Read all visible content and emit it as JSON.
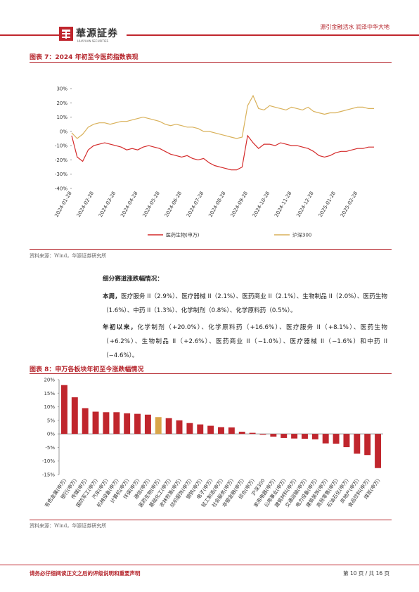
{
  "header": {
    "logo": "華源証券",
    "logo_sub": "HUAYUAN SECURITIES",
    "slogan": "源引金融活水  润泽中华大地"
  },
  "body": {
    "heading": "细分赛道涨跌幅情况：",
    "paragraphs": [
      {
        "lead": "本周，",
        "text": "医疗服务 II（2.9%）、医疗器械 II（2.1%）、医药商业 II（2.1%）、生物制品 II（2.0%）、医药生物（1.6%）、中药 II（1.3%）、化学制剂（0.8%）、化学原料药（0.5%）。"
      },
      {
        "lead": "年初以来，",
        "text": "化学制剂（+20.0%）、化学原料药（+16.6%）、医疗服务 II（+8.1%）、医药生物（+6.2%）、生物制品 II（+2.6%）、医药商业 II（−1.0%）、医疗器械 II（−1.6%）和中药 II（−4.6%）。"
      }
    ]
  },
  "chart_data": [
    {
      "type": "line",
      "title": "图表 7：2024 年初至今医药指数表现",
      "source": "资料来源：Wind，华源证券研究所",
      "categories": [
        "2024-01-28",
        null,
        null,
        null,
        "2024-02-28",
        null,
        null,
        null,
        "2024-03-28",
        null,
        null,
        null,
        "2024-04-28",
        null,
        null,
        null,
        "2024-05-28",
        null,
        null,
        null,
        "2024-06-28",
        null,
        null,
        null,
        "2024-07-28",
        null,
        null,
        null,
        "2024-08-28",
        null,
        null,
        null,
        "2024-09-28",
        null,
        null,
        null,
        "2024-10-28",
        null,
        null,
        null,
        "2024-11-28",
        null,
        null,
        null,
        "2024-12-28",
        null,
        null,
        null,
        "2025-01-28",
        null,
        null,
        null,
        "2025-02-28",
        null,
        null,
        null
      ],
      "series": [
        {
          "name": "医药生物(申万)",
          "color": "#d42a2a",
          "values": [
            -3,
            -18,
            -21,
            -13,
            -10,
            -9,
            -8,
            -9,
            -10,
            -11,
            -13,
            -12,
            -13,
            -11,
            -10,
            -11,
            -12,
            -14,
            -16,
            -17,
            -18,
            -17,
            -19,
            -20,
            -19,
            -22,
            -24,
            -25,
            -26,
            -27,
            -27,
            -25,
            -3,
            -8,
            -12,
            -9,
            -9,
            -10,
            -8,
            -9,
            -10,
            -10,
            -11,
            -12,
            -14,
            -17,
            -18,
            -17,
            -15,
            -14,
            -14,
            -13,
            -12,
            -12,
            -11,
            -11
          ]
        },
        {
          "name": "沪深300",
          "color": "#d9b15a",
          "values": [
            -1,
            -5,
            -2,
            3,
            5,
            6,
            6,
            5,
            6,
            7,
            7,
            8,
            9,
            10,
            9,
            8,
            7,
            5,
            4,
            5,
            4,
            3,
            3,
            2,
            0,
            0,
            -1,
            -2,
            -3,
            -4,
            -5,
            -4,
            18,
            25,
            16,
            15,
            18,
            17,
            16,
            15,
            17,
            16,
            15,
            17,
            14,
            13,
            12,
            13,
            13,
            14,
            15,
            16,
            17,
            17,
            16,
            16
          ]
        }
      ],
      "ylim": [
        -40,
        30
      ],
      "yticks": [
        {
          "value": -40,
          "label": "-40%"
        },
        {
          "value": -30,
          "label": "-30%"
        },
        {
          "value": -20,
          "label": "-20%"
        },
        {
          "value": -10,
          "label": "-10%"
        },
        {
          "value": 0,
          "label": "0%"
        },
        {
          "value": 10,
          "label": "10%"
        },
        {
          "value": 20,
          "label": "20%"
        },
        {
          "value": 30,
          "label": "30%"
        }
      ],
      "grid": false
    },
    {
      "type": "bar",
      "title": "图表 8：申万各板块年初至今涨跌幅情况",
      "source": "资料来源：Wind，华源证券研究所",
      "categories": [
        "有色金属(申万)",
        "银行(申万)",
        "传媒(申万)",
        "国防军工(申万)",
        "汽车(申万)",
        "机械设备(申万)",
        "计算机(申万)",
        "环保(申万)",
        "通信(申万)",
        "医药生物(申万)",
        "基础化工(申万)",
        "农林牧渔(申万)",
        "纺织服饰(申万)",
        "钢铁(申万)",
        "电子(申万)",
        "轻工制造(申万)",
        "社会服务(申万)",
        "非银金融(申万)",
        "综合(申万)",
        "沪深300",
        "家用电器(申万)",
        "公用事业(申万)",
        "建筑材料(申万)",
        "交通运输(申万)",
        "电力设备(申万)",
        "建筑装饰(申万)",
        "商贸零售(申万)",
        "石油石化(申万)",
        "房地产(申万)",
        "食品饮料(申万)",
        "煤炭(申万)"
      ],
      "values": [
        18,
        13.5,
        9.5,
        8.2,
        8,
        8,
        7.6,
        7.4,
        7.1,
        6.2,
        5.8,
        5,
        4,
        3.5,
        3,
        2.5,
        2.4,
        0.8,
        0.4,
        -0.3,
        -1,
        -1.5,
        -1.7,
        -1.8,
        -2,
        -3.5,
        -3.6,
        -4.9,
        -7.3,
        -7.8,
        -12.6
      ],
      "colors": [
        "#c0262d",
        "#c0262d",
        "#c0262d",
        "#c0262d",
        "#c0262d",
        "#c0262d",
        "#c0262d",
        "#c0262d",
        "#c0262d",
        "#d9a64a",
        "#c0262d",
        "#c0262d",
        "#c0262d",
        "#c0262d",
        "#c0262d",
        "#c0262d",
        "#c0262d",
        "#c0262d",
        "#c0262d",
        "#c0262d",
        "#c0262d",
        "#c0262d",
        "#c0262d",
        "#c0262d",
        "#c0262d",
        "#c0262d",
        "#c0262d",
        "#c0262d",
        "#c0262d",
        "#c0262d",
        "#c0262d"
      ],
      "ylim": [
        -15,
        20
      ],
      "yticks": [
        {
          "value": -15,
          "label": "-15%"
        },
        {
          "value": -10,
          "label": "-10%"
        },
        {
          "value": -5,
          "label": "-5%"
        },
        {
          "value": 0,
          "label": "0%"
        },
        {
          "value": 5,
          "label": "5%"
        },
        {
          "value": 10,
          "label": "10%"
        },
        {
          "value": 15,
          "label": "15%"
        },
        {
          "value": 20,
          "label": "20%"
        }
      ],
      "grid": false
    }
  ],
  "footer": {
    "disclaimer": "请务必仔细阅读正文之后的评级说明和重要声明",
    "page": "第 10 页 / 共 16 页"
  }
}
